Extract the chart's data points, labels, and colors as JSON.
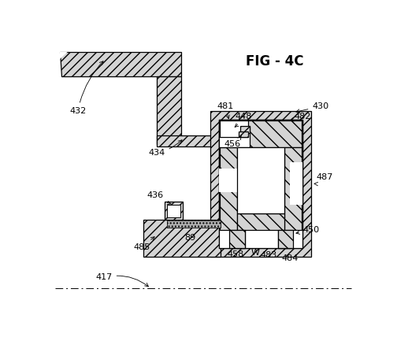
{
  "title": "FIG - 4C",
  "title_fontsize": 12,
  "bg_color": "#ffffff",
  "label_fontsize": 8,
  "ec": "#000000",
  "fc_gray": "#d4d4d4",
  "lw": 0.9
}
